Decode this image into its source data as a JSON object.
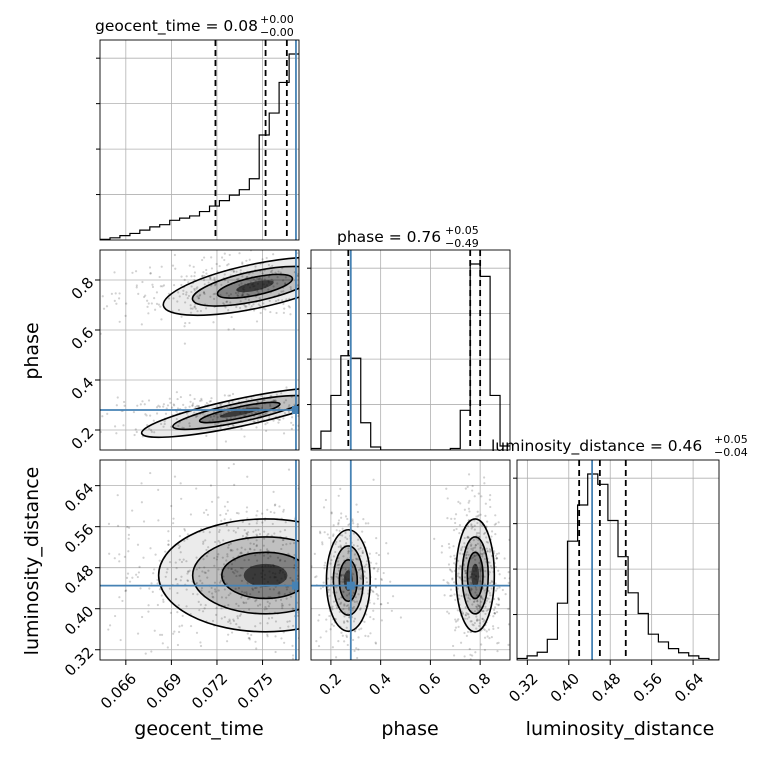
{
  "chart_data": {
    "type": "corner",
    "parameters": [
      "geocent_time",
      "phase",
      "luminosity_distance"
    ],
    "axis_labels": {
      "geocent_time": "geocent_time",
      "phase": "phase",
      "luminosity_distance": "luminosity_distance"
    },
    "ranges": {
      "geocent_time": [
        0.0643,
        0.0774
      ],
      "phase": [
        0.12,
        0.92
      ],
      "luminosity_distance": [
        0.3,
        0.69
      ]
    },
    "ticks": {
      "geocent_time": [
        "0.066",
        "0.069",
        "0.072",
        "0.075"
      ],
      "phase": [
        "0.2",
        "0.4",
        "0.6",
        "0.8"
      ],
      "luminosity_distance": [
        "0.32",
        "0.40",
        "0.48",
        "0.56",
        "0.64"
      ]
    },
    "titles": {
      "geocent_time": {
        "label": "geocent_time = 0.08",
        "sup": "+0.00",
        "sub": "−0.00"
      },
      "phase": {
        "label": "phase = 0.76",
        "sup": "+0.05",
        "sub": "−0.49"
      },
      "luminosity_distance": {
        "label": "luminosity_distance = 0.46",
        "sup": "+0.05",
        "sub": "−0.04"
      }
    },
    "truths": {
      "geocent_time": 0.0772,
      "phase": 0.28,
      "luminosity_distance": 0.445
    },
    "quantiles": {
      "geocent_time": [
        0.0719,
        0.0752,
        0.0766
      ],
      "phase": [
        0.27,
        0.76,
        0.8
      ],
      "luminosity_distance": [
        0.42,
        0.46,
        0.51
      ]
    },
    "histograms": {
      "geocent_time": {
        "edges": [
          0.0643,
          0.06496,
          0.06561,
          0.06627,
          0.06692,
          0.06758,
          0.06823,
          0.06889,
          0.06954,
          0.0702,
          0.07085,
          0.07151,
          0.07216,
          0.07282,
          0.07347,
          0.07413,
          0.07478,
          0.07544,
          0.07609,
          0.07675,
          0.0774
        ],
        "counts": [
          0.3,
          1,
          2,
          3,
          4.5,
          6,
          7,
          9,
          10,
          11,
          13,
          15.5,
          18,
          20.5,
          23,
          28,
          48,
          58,
          72,
          85
        ]
      },
      "phase": {
        "edges": [
          0.12,
          0.16,
          0.2,
          0.24,
          0.28,
          0.32,
          0.36,
          0.4,
          0.44,
          0.48,
          0.52,
          0.56,
          0.6,
          0.64,
          0.68,
          0.72,
          0.76,
          0.8,
          0.84,
          0.88,
          0.92
        ],
        "counts": [
          0.3,
          3.8,
          11,
          19,
          18.5,
          5.5,
          0.6,
          0,
          0,
          0,
          0,
          0,
          0,
          0,
          0.3,
          8,
          37.5,
          35,
          11,
          0.8
        ]
      },
      "luminosity_distance": {
        "edges": [
          0.3,
          0.3195,
          0.339,
          0.3585,
          0.378,
          0.3975,
          0.417,
          0.4365,
          0.456,
          0.4755,
          0.495,
          0.5145,
          0.534,
          0.5535,
          0.573,
          0.5925,
          0.612,
          0.6315,
          0.651,
          0.6705,
          0.69
        ],
        "counts": [
          0.3,
          0.8,
          1.5,
          4,
          11,
          23,
          30,
          36,
          34,
          27,
          20,
          13,
          9,
          5,
          3.5,
          2.2,
          1.4,
          0.8,
          0.3,
          0
        ]
      }
    },
    "pairs": [
      {
        "x": "geocent_time",
        "y": "phase",
        "modes": [
          {
            "cx": 0.0745,
            "cy": 0.775,
            "sx": 0.0028,
            "sy": 0.04,
            "tilt": 0.012,
            "n": 500
          },
          {
            "cx": 0.0735,
            "cy": 0.27,
            "sx": 0.003,
            "sy": 0.025,
            "tilt": 0.01,
            "n": 420
          }
        ]
      },
      {
        "x": "geocent_time",
        "y": "luminosity_distance",
        "modes": [
          {
            "cx": 0.0752,
            "cy": 0.465,
            "sx": 0.0032,
            "sy": 0.05,
            "tilt": 0,
            "n": 900
          }
        ]
      },
      {
        "x": "phase",
        "y": "luminosity_distance",
        "modes": [
          {
            "cx": 0.27,
            "cy": 0.455,
            "sx": 0.04,
            "sy": 0.045,
            "tilt": 0,
            "n": 380
          },
          {
            "cx": 0.78,
            "cy": 0.465,
            "sx": 0.035,
            "sy": 0.05,
            "tilt": 0,
            "n": 480
          }
        ]
      }
    ]
  }
}
